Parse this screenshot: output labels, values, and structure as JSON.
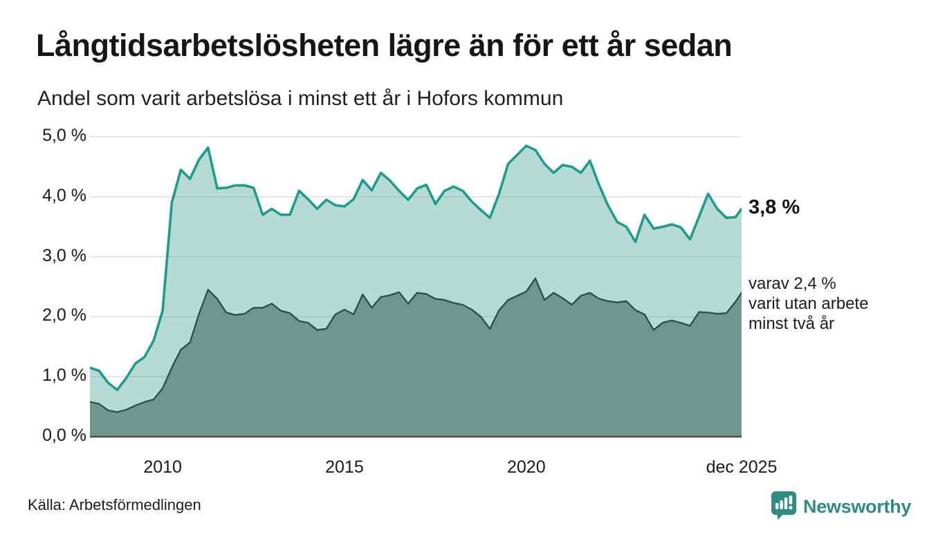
{
  "header": {
    "title": "Långtidsarbetslösheten lägre än för ett år sedan",
    "subtitle": "Andel som varit arbetslösa i minst ett år i Hofors kommun"
  },
  "annotations": {
    "series1_end_value": "3,8 %",
    "series2_note": [
      "varav 2,4 %",
      "varit utan arbete",
      "minst två år"
    ]
  },
  "footer": {
    "source": "Källa: Arbetsförmedlingen",
    "brand": "Newsworthy",
    "brand_icon": "newsworthy-speech-bubble-chart-icon"
  },
  "colors": {
    "series1_line": "#1d9b8d",
    "series1_fill": "#b6dbd5",
    "series2_line": "#2f4f48",
    "series2_fill": "#70978f",
    "gridline": "rgba(130,130,130,0.25)",
    "baseline": "#4d4d4d",
    "brand_teal": "#2e8d82"
  },
  "chart_data": {
    "type": "area",
    "title": "Långtidsarbetslösheten lägre än för ett år sedan",
    "subtitle": "Andel som varit arbetslösa i minst ett år i Hofors kommun",
    "xlabel": "",
    "ylabel": "",
    "ylim": [
      0,
      5
    ],
    "x_range": [
      2008.0,
      2025.92
    ],
    "grid": true,
    "legend": "none",
    "yticks": [
      {
        "v": 0,
        "label": "0,0 %"
      },
      {
        "v": 1,
        "label": "1,0 %"
      },
      {
        "v": 2,
        "label": "2,0 %"
      },
      {
        "v": 3,
        "label": "3,0 %"
      },
      {
        "v": 4,
        "label": "4,0 %"
      },
      {
        "v": 5,
        "label": "5,0 %"
      }
    ],
    "xticks": [
      {
        "x": 2010.0,
        "label": "2010"
      },
      {
        "x": 2015.0,
        "label": "2015"
      },
      {
        "x": 2020.0,
        "label": "2020"
      },
      {
        "x": 2025.92,
        "label": "dec 2025"
      }
    ],
    "x": [
      2008.0,
      2008.25,
      2008.5,
      2008.75,
      2009.0,
      2009.25,
      2009.5,
      2009.75,
      2010.0,
      2010.25,
      2010.5,
      2010.75,
      2011.0,
      2011.25,
      2011.5,
      2011.75,
      2012.0,
      2012.25,
      2012.5,
      2012.75,
      2013.0,
      2013.25,
      2013.5,
      2013.75,
      2014.0,
      2014.25,
      2014.5,
      2014.75,
      2015.0,
      2015.25,
      2015.5,
      2015.75,
      2016.0,
      2016.25,
      2016.5,
      2016.75,
      2017.0,
      2017.25,
      2017.5,
      2017.75,
      2018.0,
      2018.25,
      2018.5,
      2018.75,
      2019.0,
      2019.25,
      2019.5,
      2019.75,
      2020.0,
      2020.25,
      2020.5,
      2020.75,
      2021.0,
      2021.25,
      2021.5,
      2021.75,
      2022.0,
      2022.25,
      2022.5,
      2022.75,
      2023.0,
      2023.25,
      2023.5,
      2023.75,
      2024.0,
      2024.25,
      2024.5,
      2024.75,
      2025.0,
      2025.25,
      2025.5,
      2025.75,
      2025.92
    ],
    "series": [
      {
        "name": "Andel som varit arbetslösa i minst ett år",
        "end_value_pct": 3.8,
        "values": [
          1.15,
          1.1,
          0.9,
          0.78,
          0.98,
          1.22,
          1.33,
          1.6,
          2.1,
          3.9,
          4.45,
          4.3,
          4.62,
          4.82,
          4.14,
          4.15,
          4.19,
          4.19,
          4.15,
          3.7,
          3.8,
          3.7,
          3.7,
          4.1,
          3.96,
          3.8,
          3.95,
          3.86,
          3.84,
          3.96,
          4.28,
          4.11,
          4.4,
          4.27,
          4.1,
          3.95,
          4.14,
          4.2,
          3.88,
          4.1,
          4.17,
          4.1,
          3.92,
          3.78,
          3.65,
          4.05,
          4.55,
          4.7,
          4.85,
          4.78,
          4.55,
          4.4,
          4.53,
          4.5,
          4.4,
          4.6,
          4.2,
          3.85,
          3.58,
          3.5,
          3.25,
          3.7,
          3.47,
          3.5,
          3.54,
          3.49,
          3.29,
          3.67,
          4.05,
          3.8,
          3.65,
          3.66,
          3.8
        ]
      },
      {
        "name": "varav utan arbete minst två år",
        "end_value_pct": 2.4,
        "values": [
          0.58,
          0.55,
          0.44,
          0.41,
          0.45,
          0.52,
          0.58,
          0.62,
          0.81,
          1.15,
          1.45,
          1.57,
          2.05,
          2.45,
          2.3,
          2.07,
          2.03,
          2.05,
          2.15,
          2.15,
          2.22,
          2.1,
          2.06,
          1.93,
          1.9,
          1.78,
          1.8,
          2.04,
          2.12,
          2.04,
          2.37,
          2.15,
          2.33,
          2.36,
          2.41,
          2.22,
          2.4,
          2.38,
          2.3,
          2.28,
          2.23,
          2.2,
          2.12,
          2.0,
          1.8,
          2.11,
          2.28,
          2.35,
          2.42,
          2.64,
          2.28,
          2.4,
          2.31,
          2.2,
          2.35,
          2.4,
          2.3,
          2.26,
          2.24,
          2.26,
          2.11,
          2.04,
          1.78,
          1.9,
          1.94,
          1.9,
          1.85,
          2.08,
          2.07,
          2.05,
          2.06,
          2.25,
          2.4
        ]
      }
    ]
  }
}
